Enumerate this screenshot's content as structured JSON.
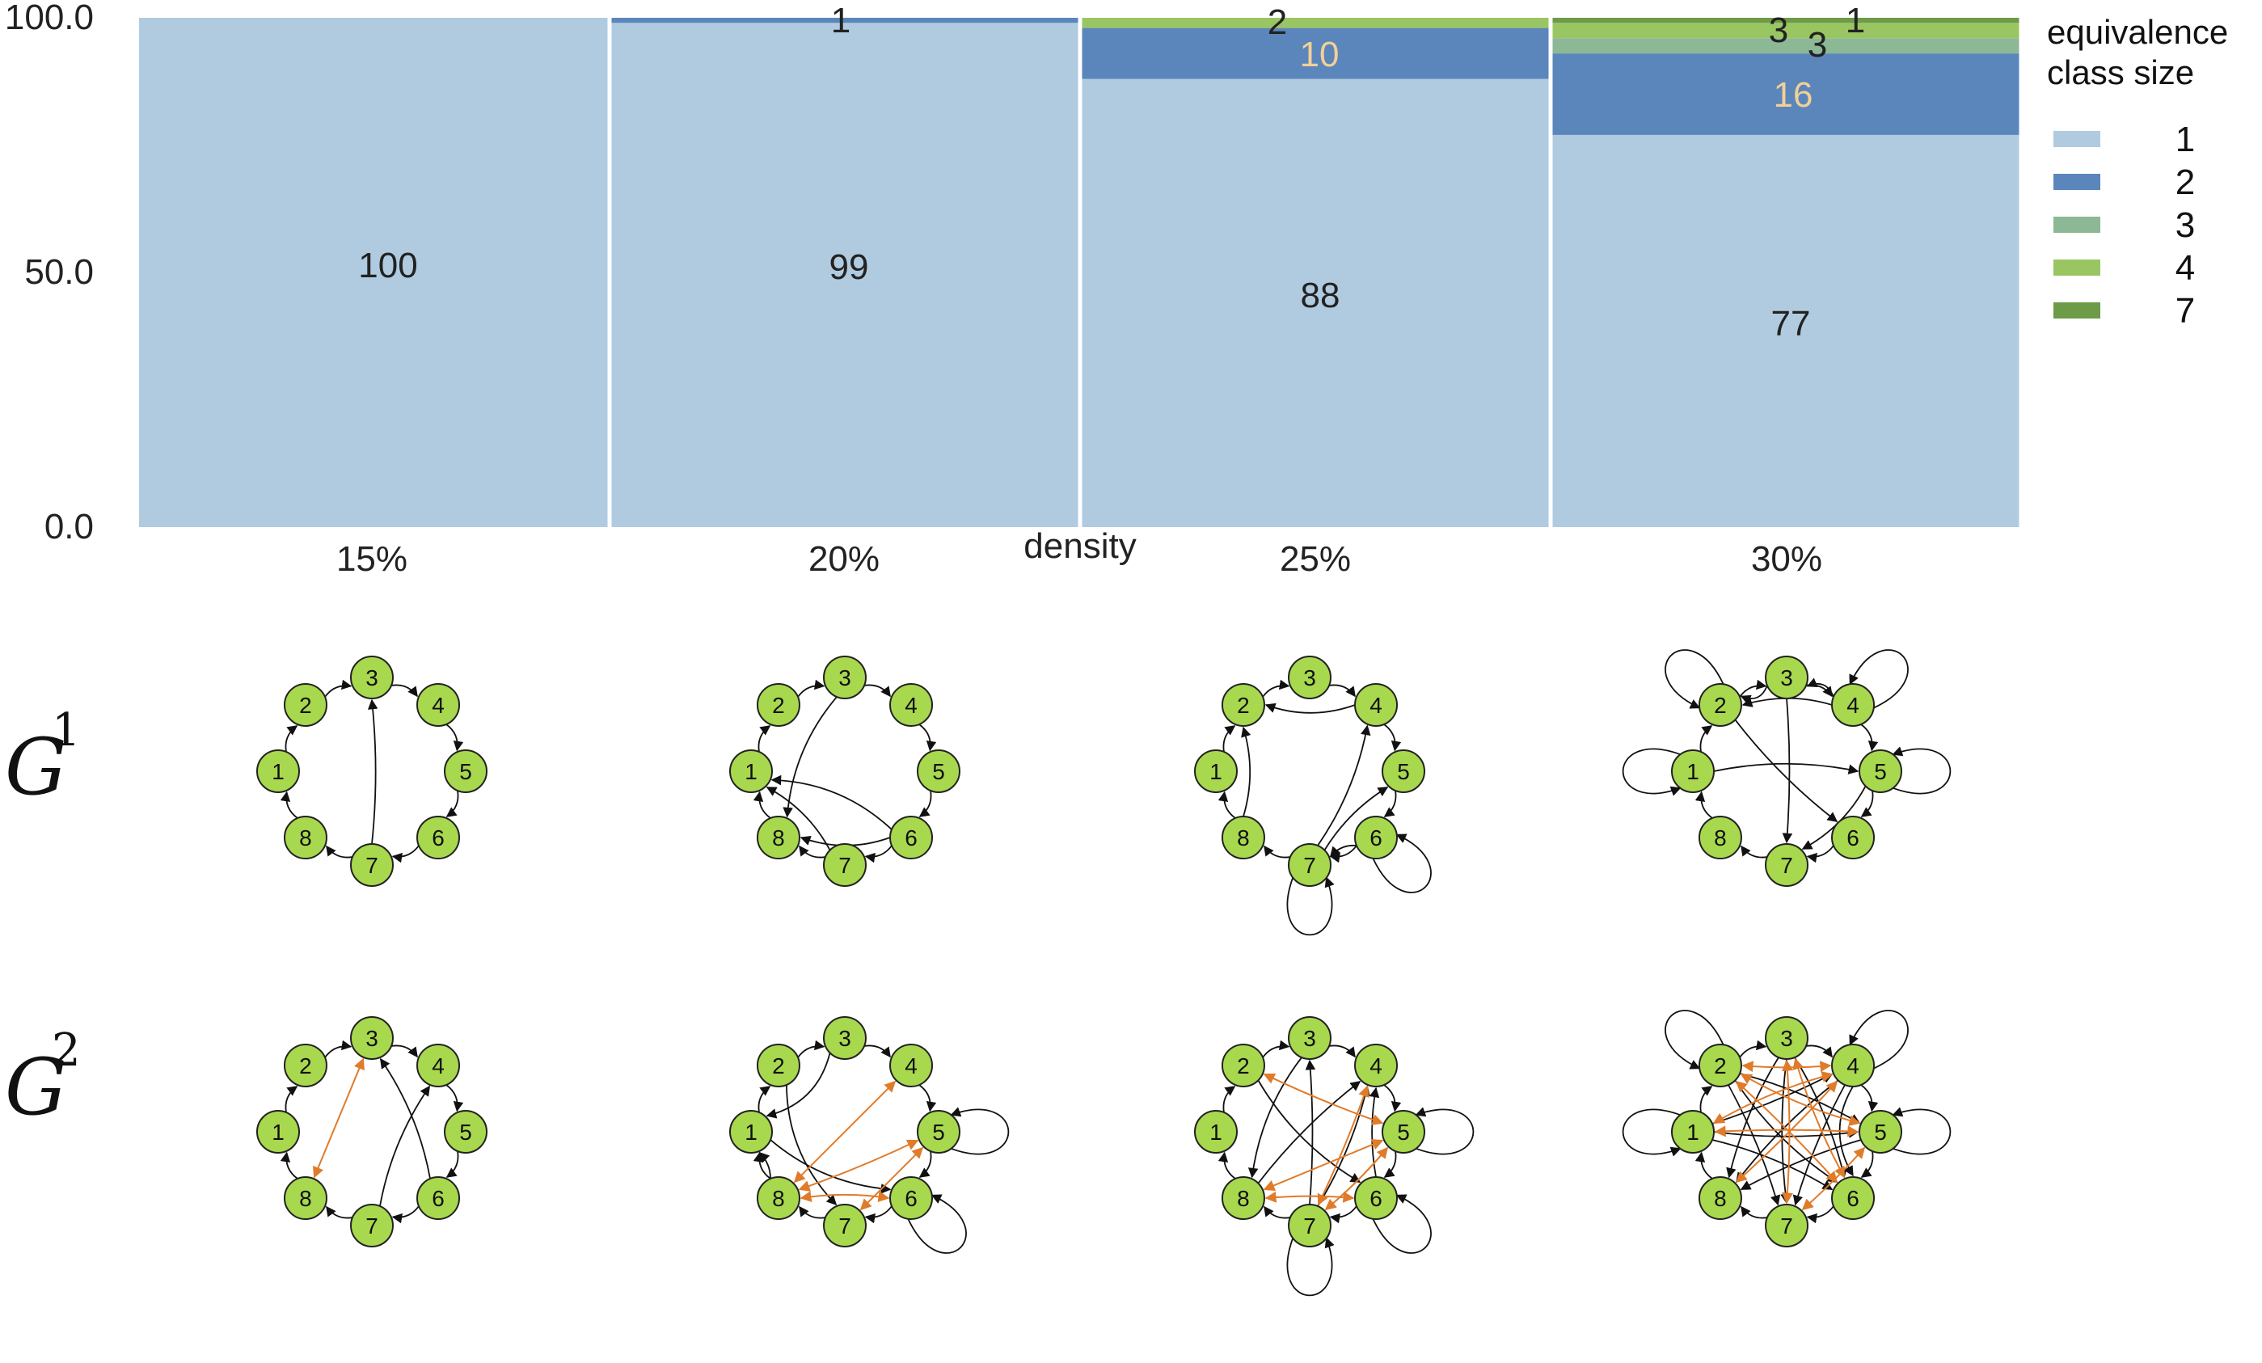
{
  "colors": {
    "class_1": "#b0cbe0",
    "class_2": "#5a86bb",
    "class_3": "#8cb896",
    "class_4": "#99c662",
    "class_7": "#6d9b47",
    "label_dark": "#222222",
    "label_light": "#f2d096",
    "node_fill": "#a8d84e",
    "edge_black": "#111111",
    "edge_orange": "#e07b2a"
  },
  "chart_data": {
    "type": "bar",
    "stacked": true,
    "xlabel": "density",
    "ylabel": "",
    "ylim": [
      0,
      100
    ],
    "yticks": [
      "0.0",
      "50.0",
      "100.0"
    ],
    "categories": [
      "15%",
      "20%",
      "25%",
      "30%"
    ],
    "legend": {
      "title": "equivalence class size",
      "title_lines": [
        "equivalence",
        "class size"
      ],
      "placement": "right"
    },
    "series": [
      {
        "name": "1",
        "values": [
          100,
          99,
          88,
          77
        ],
        "labels": [
          "100",
          "99",
          "88",
          "77"
        ]
      },
      {
        "name": "2",
        "values": [
          0,
          1,
          10,
          16
        ],
        "labels": [
          "",
          "1",
          "10",
          "16"
        ]
      },
      {
        "name": "3",
        "values": [
          0,
          0,
          0,
          3
        ],
        "labels": [
          "",
          "",
          "",
          "3"
        ]
      },
      {
        "name": "4",
        "values": [
          0,
          0,
          2,
          3
        ],
        "labels": [
          "",
          "",
          "2",
          "3"
        ]
      },
      {
        "name": "7",
        "values": [
          0,
          0,
          0,
          1
        ],
        "labels": [
          "",
          "",
          "",
          "1"
        ]
      }
    ]
  },
  "graph_rows": [
    {
      "label": "G",
      "superscript": "1"
    },
    {
      "label": "G",
      "superscript": "2"
    }
  ],
  "node_labels": [
    "1",
    "2",
    "3",
    "4",
    "5",
    "6",
    "7",
    "8"
  ]
}
